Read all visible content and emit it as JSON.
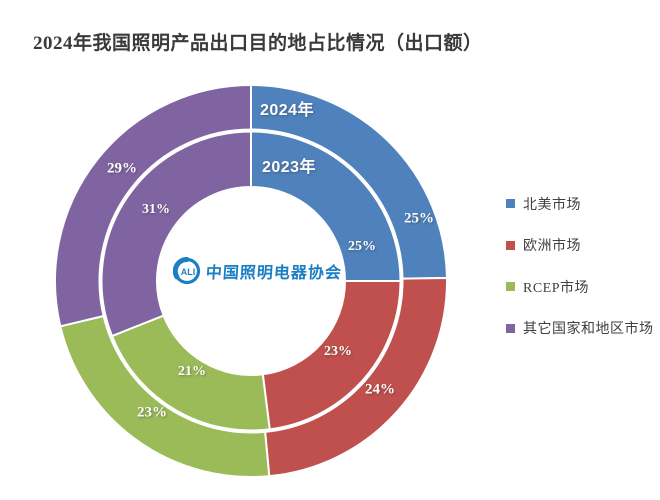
{
  "chart_data": {
    "type": "pie",
    "subtype": "double-doughnut",
    "title": "2024年我国照明产品出口目的地占比情况（出口额）",
    "categories": [
      "北美市场",
      "欧洲市场",
      "RCEP市场",
      "其它国家和地区市场"
    ],
    "colors": [
      "#4f81bd",
      "#c0504d",
      "#9bbb59",
      "#8064a2"
    ],
    "rings": [
      {
        "name": "2024年",
        "position": "outer",
        "values": [
          25,
          24,
          23,
          29
        ],
        "labels": [
          "25%",
          "24%",
          "23%",
          "29%"
        ]
      },
      {
        "name": "2023年",
        "position": "inner",
        "values": [
          25,
          23,
          21,
          31
        ],
        "labels": [
          "25%",
          "23%",
          "21%",
          "31%"
        ]
      }
    ],
    "legend_position": "right",
    "label_color": "#ffffff",
    "start_angle_deg": 0,
    "direction": "clockwise"
  },
  "logo": {
    "mark": "ALI",
    "text": "中国照明电器协会",
    "color": "#1b7fc4"
  }
}
